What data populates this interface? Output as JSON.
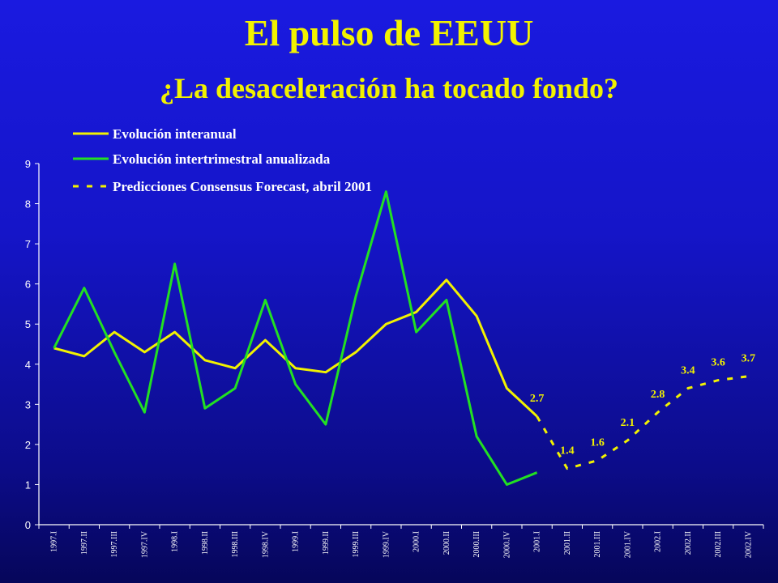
{
  "title": "El pulso de EEUU",
  "subtitle": "¿La desaceleración ha tocado fondo?",
  "chart_data": {
    "type": "line",
    "title": "El pulso de EEUU",
    "subtitle": "¿La desaceleración ha tocado fondo?",
    "ylim": [
      0,
      9
    ],
    "yticks": [
      "0",
      "1",
      "2",
      "3",
      "4",
      "5",
      "6",
      "7",
      "8",
      "9"
    ],
    "categories": [
      "1997.I",
      "1997.II",
      "1997.III",
      "1997.IV",
      "1998.I",
      "1998.II",
      "1998.III",
      "1998.IV",
      "1999.I",
      "1999.II",
      "1999.III",
      "1999.IV",
      "2000.I",
      "2000.II",
      "2000.III",
      "2000.IV",
      "2001.I",
      "2001.II",
      "2001.III",
      "2001.IV",
      "2002.I",
      "2002.II",
      "2002.III",
      "2002.IV"
    ],
    "legend_position": "top-left",
    "series": [
      {
        "name": "Evolución interanual",
        "color": "#f2f200",
        "style": "solid",
        "values": [
          4.4,
          4.2,
          4.8,
          4.3,
          4.8,
          4.1,
          3.9,
          4.6,
          3.9,
          3.8,
          4.3,
          5.0,
          5.3,
          6.1,
          5.2,
          3.4,
          2.7,
          null,
          null,
          null,
          null,
          null,
          null,
          null
        ]
      },
      {
        "name": "Evolución intertrimestral anualizada",
        "color": "#22e022",
        "style": "solid",
        "values": [
          4.4,
          5.9,
          4.3,
          2.8,
          6.5,
          2.9,
          3.4,
          5.6,
          3.5,
          2.5,
          5.7,
          8.3,
          4.8,
          5.6,
          2.2,
          1.0,
          1.3,
          null,
          null,
          null,
          null,
          null,
          null,
          null
        ]
      },
      {
        "name": "Predicciones Consensus Forecast, abril 2001",
        "color": "#f2f200",
        "style": "dashed",
        "values": [
          null,
          null,
          null,
          null,
          null,
          null,
          null,
          null,
          null,
          null,
          null,
          null,
          null,
          null,
          null,
          null,
          2.7,
          1.4,
          1.6,
          2.1,
          2.8,
          3.4,
          3.6,
          3.7
        ]
      }
    ],
    "data_labels": [
      {
        "category": "2001.I",
        "value": 2.7,
        "text": "2.7"
      },
      {
        "category": "2001.II",
        "value": 1.4,
        "text": "1.4"
      },
      {
        "category": "2001.III",
        "value": 1.6,
        "text": "1.6"
      },
      {
        "category": "2001.IV",
        "value": 2.1,
        "text": "2.1"
      },
      {
        "category": "2002.I",
        "value": 2.8,
        "text": "2.8"
      },
      {
        "category": "2002.II",
        "value": 3.4,
        "text": "3.4"
      },
      {
        "category": "2002.III",
        "value": 3.6,
        "text": "3.6"
      },
      {
        "category": "2002.IV",
        "value": 3.7,
        "text": "3.7"
      }
    ]
  }
}
